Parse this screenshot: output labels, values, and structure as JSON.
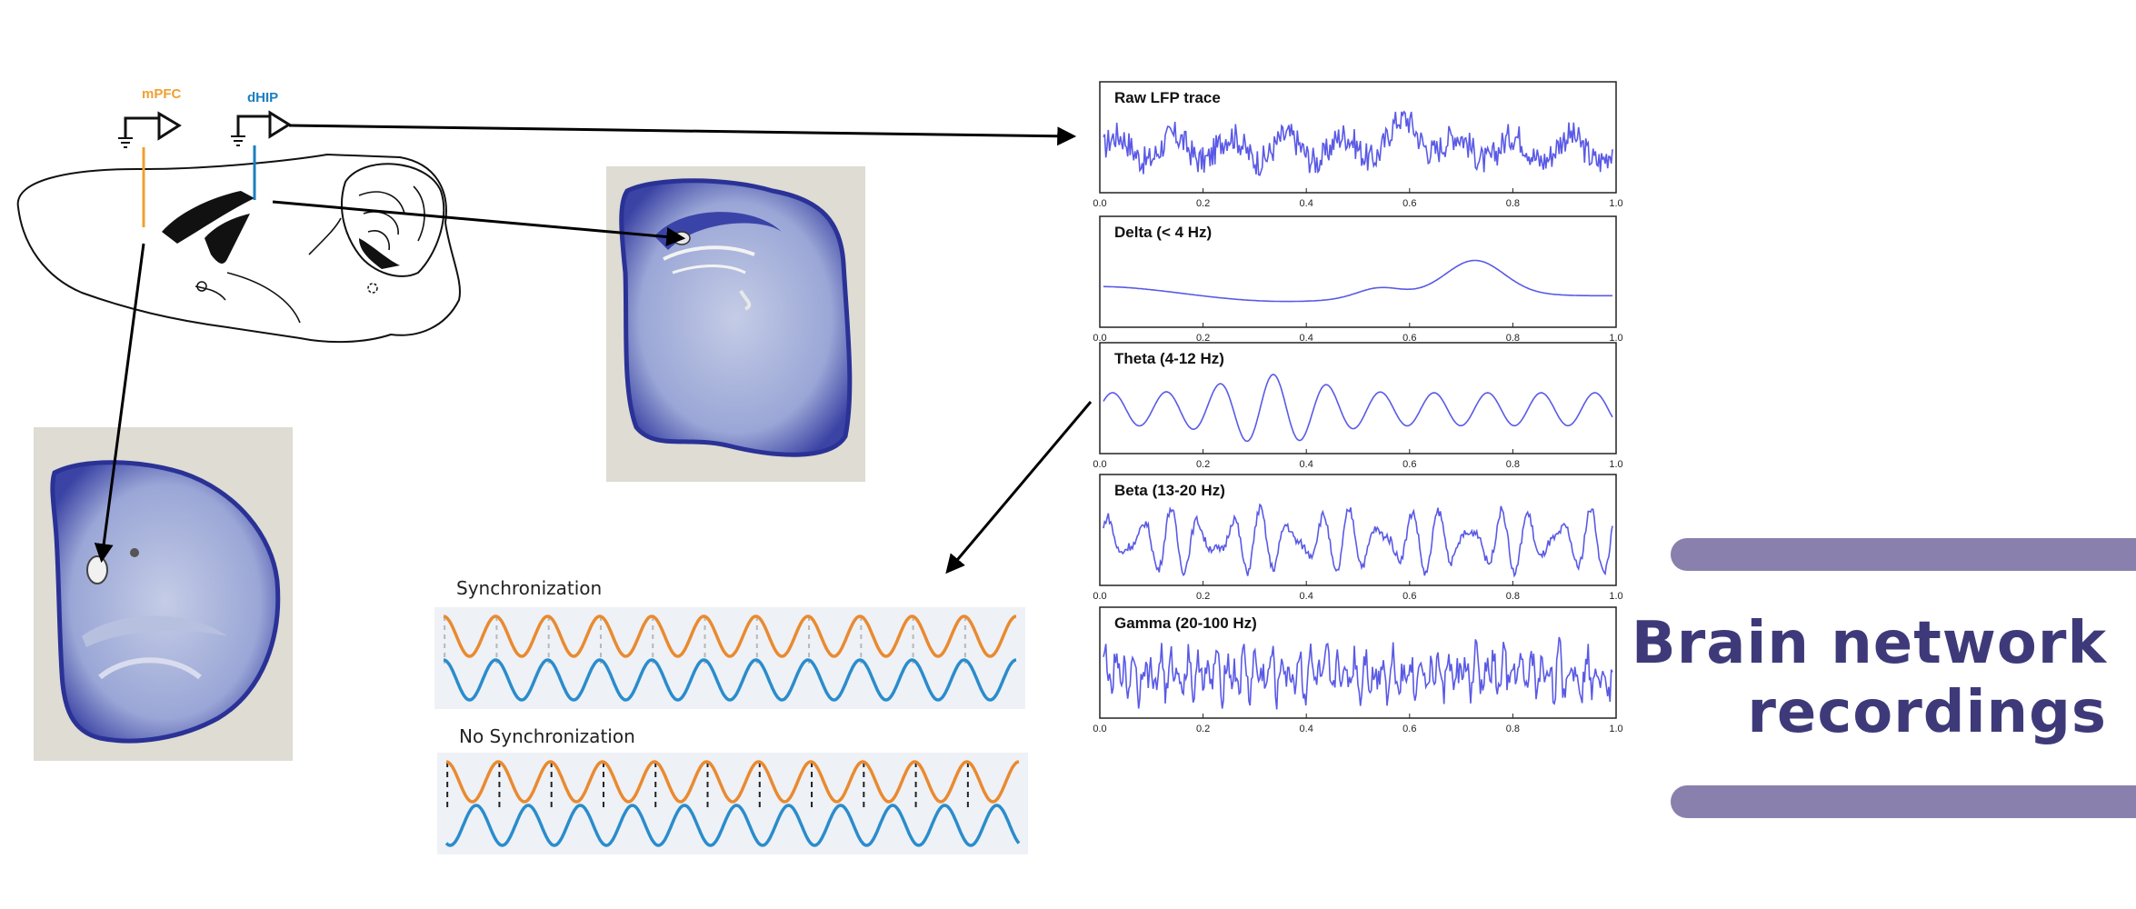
{
  "title": {
    "line1": "Brain network",
    "line2": "recordings"
  },
  "regions": {
    "mpfc": "mPFC",
    "dhip": "dHIP"
  },
  "colors": {
    "mpfc": "#f0a030",
    "dhip": "#1a7fc0",
    "trace": "#5a5ae6",
    "title": "#3e3a7a",
    "bar": "#8a80ae",
    "wave_orange": "#e98a30",
    "wave_blue": "#2a8ccc"
  },
  "sync": {
    "label_sync": "Synchronization",
    "label_nosync": "No Synchronization"
  },
  "panels": [
    {
      "label": "Raw  LFP trace",
      "kind": "raw"
    },
    {
      "label": "Delta (< 4 Hz)",
      "kind": "delta"
    },
    {
      "label": "Theta (4-12 Hz)",
      "kind": "theta"
    },
    {
      "label": "Beta (13-20 Hz)",
      "kind": "beta"
    },
    {
      "label": "Gamma (20-100 Hz)",
      "kind": "gamma"
    }
  ],
  "x_ticks": [
    "0.0",
    "0.2",
    "0.4",
    "0.6",
    "0.8",
    "1.0"
  ]
}
